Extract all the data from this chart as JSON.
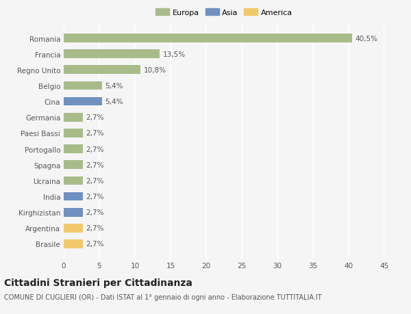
{
  "categories": [
    "Brasile",
    "Argentina",
    "Kirghizistan",
    "India",
    "Ucraina",
    "Spagna",
    "Portogallo",
    "Paesi Bassi",
    "Germania",
    "Cina",
    "Belgio",
    "Regno Unito",
    "Francia",
    "Romania"
  ],
  "values": [
    2.7,
    2.7,
    2.7,
    2.7,
    2.7,
    2.7,
    2.7,
    2.7,
    2.7,
    5.4,
    5.4,
    10.8,
    13.5,
    40.5
  ],
  "labels": [
    "2,7%",
    "2,7%",
    "2,7%",
    "2,7%",
    "2,7%",
    "2,7%",
    "2,7%",
    "2,7%",
    "2,7%",
    "5,4%",
    "5,4%",
    "10,8%",
    "13,5%",
    "40,5%"
  ],
  "colors": [
    "#f0c96a",
    "#f0c96a",
    "#7090c0",
    "#7090c0",
    "#a8bc8a",
    "#a8bc8a",
    "#a8bc8a",
    "#a8bc8a",
    "#a8bc8a",
    "#7090c0",
    "#a8bc8a",
    "#a8bc8a",
    "#a8bc8a",
    "#a8bc8a"
  ],
  "continent_colors": {
    "Europa": "#a8bc8a",
    "Asia": "#7090c0",
    "America": "#f0c96a"
  },
  "xlim": [
    0,
    45
  ],
  "xticks": [
    0,
    5,
    10,
    15,
    20,
    25,
    30,
    35,
    40,
    45
  ],
  "title": "Cittadini Stranieri per Cittadinanza",
  "subtitle": "COMUNE DI CUGLIERI (OR) - Dati ISTAT al 1° gennaio di ogni anno - Elaborazione TUTTITALIA.IT",
  "background_color": "#f5f5f5",
  "bar_height": 0.55,
  "grid_color": "#ffffff",
  "text_color": "#555555",
  "label_fontsize": 7.5,
  "ytick_fontsize": 7.5,
  "xtick_fontsize": 7.5,
  "title_fontsize": 10,
  "subtitle_fontsize": 7,
  "legend_fontsize": 8
}
